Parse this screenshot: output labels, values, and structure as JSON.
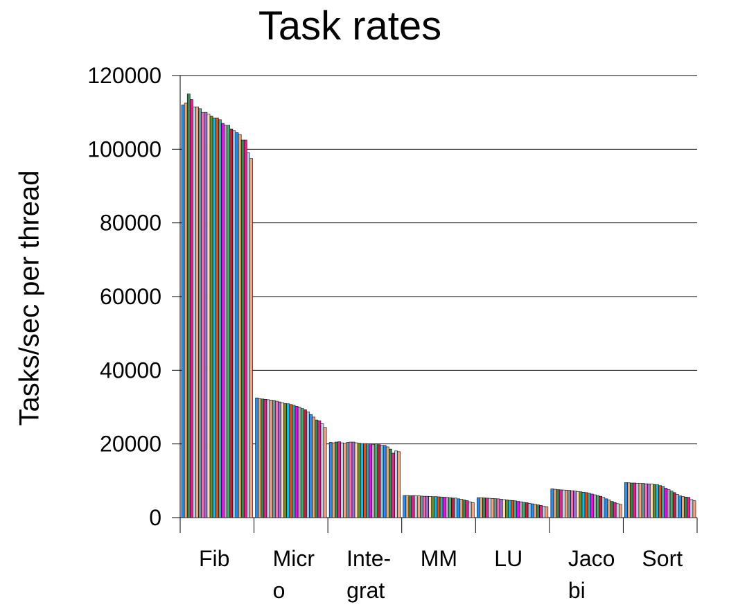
{
  "chart_data": {
    "type": "bar",
    "title": "Task rates",
    "ylabel": "Tasks/sec per thread",
    "xlabel": "",
    "ylim": [
      0,
      120000
    ],
    "yticks": [
      "0",
      "20000",
      "40000",
      "60000",
      "80000",
      "100000",
      "120000"
    ],
    "grid": true,
    "legend": "none",
    "categories": [
      "Fib",
      "Micr o",
      "Inte- grat",
      "MM",
      "LU",
      "Jaco bi",
      "Sort"
    ],
    "category_label_lines": [
      [
        "Fib"
      ],
      [
        "Micr",
        "o"
      ],
      [
        "Inte-",
        "grat"
      ],
      [
        "MM"
      ],
      [
        "LU"
      ],
      [
        "Jaco",
        "bi"
      ],
      [
        "Sort"
      ]
    ],
    "series_colors": [
      "#1e90ff",
      "#f4a460",
      "#2e8b57",
      "#ff1493",
      "#add8e6",
      "#ffa07a",
      "#5f9ea0",
      "#ff69b4",
      "#9370db",
      "#ffdead",
      "#6b8e23",
      "#00bfff",
      "#ff4500",
      "#20b2aa",
      "#ff00ff",
      "#a9a9a9",
      "#3cb371",
      "#dc143c",
      "#87ceeb"
    ],
    "groups": [
      {
        "name": "Fib",
        "values": [
          112000,
          112500,
          115000,
          113500,
          111500,
          111500,
          111000,
          110000,
          110000,
          109500,
          109000,
          108500,
          108500,
          108000,
          107000,
          106500,
          106500,
          105500,
          105000,
          104500,
          104000,
          102500,
          102500,
          99000,
          97500
        ]
      },
      {
        "name": "Micro",
        "values": [
          32500,
          32300,
          32200,
          32100,
          32000,
          31900,
          31800,
          31600,
          31400,
          31200,
          31000,
          30900,
          30700,
          30500,
          30200,
          30000,
          29600,
          29300,
          28700,
          28000,
          27300,
          26500,
          26300,
          25500,
          24500
        ]
      },
      {
        "name": "Integrat",
        "values": [
          20400,
          20300,
          20500,
          20600,
          20300,
          20200,
          20400,
          20500,
          20500,
          20300,
          20200,
          20100,
          20100,
          20000,
          20000,
          19900,
          20000,
          19800,
          19600,
          19600,
          19200,
          18600,
          17500,
          18100,
          17900
        ]
      },
      {
        "name": "MM",
        "values": [
          6000,
          6000,
          5950,
          5950,
          5900,
          5900,
          5850,
          5800,
          5800,
          5750,
          5700,
          5700,
          5650,
          5600,
          5550,
          5500,
          5400,
          5300,
          5300,
          5100,
          5000,
          4800,
          4600,
          4300,
          4100
        ]
      },
      {
        "name": "LU",
        "values": [
          5400,
          5400,
          5350,
          5300,
          5250,
          5200,
          5150,
          5100,
          5000,
          4900,
          4800,
          4700,
          4650,
          4550,
          4400,
          4300,
          4150,
          4050,
          3900,
          3750,
          3600,
          3450,
          3300,
          3100,
          2950
        ]
      },
      {
        "name": "Jacobi",
        "values": [
          7800,
          7700,
          7600,
          7550,
          7500,
          7450,
          7400,
          7300,
          7200,
          7100,
          7000,
          6900,
          6800,
          6600,
          6400,
          6200,
          6000,
          5800,
          5500,
          5100,
          4800,
          4400,
          4100,
          3800,
          3600
        ]
      },
      {
        "name": "Sort",
        "values": [
          9500,
          9450,
          9400,
          9400,
          9350,
          9300,
          9300,
          9200,
          9150,
          9100,
          9000,
          8900,
          8700,
          8400,
          8000,
          7600,
          7200,
          6800,
          6300,
          5900,
          5700,
          5600,
          5500,
          4900,
          4600
        ]
      }
    ]
  }
}
